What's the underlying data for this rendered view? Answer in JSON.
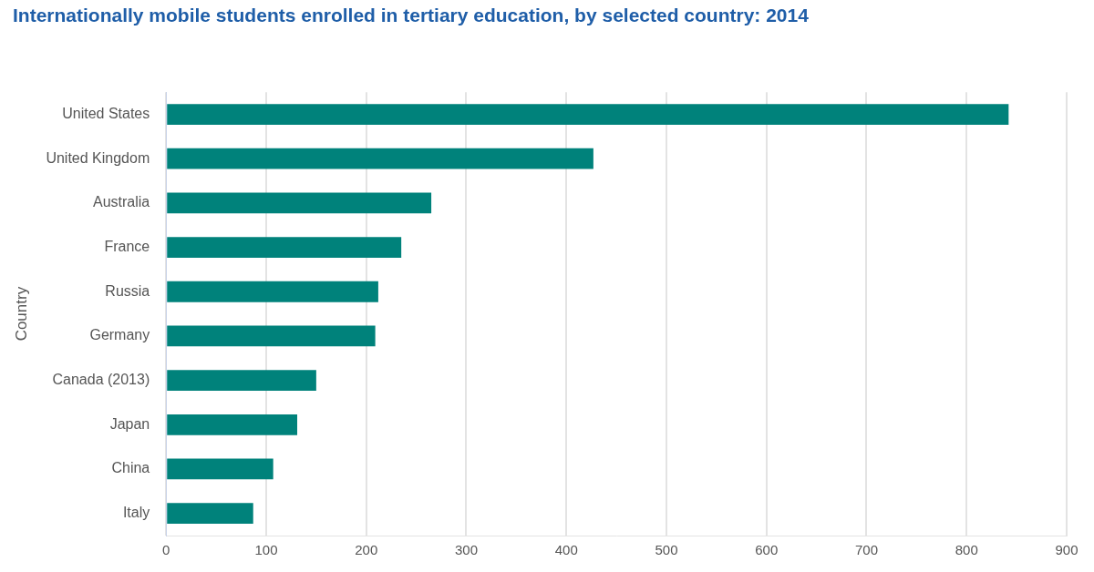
{
  "chart_data": {
    "type": "bar",
    "orientation": "horizontal",
    "title": "Internationally mobile students enrolled in tertiary education, by selected country: 2014",
    "y_label": "Country",
    "categories": [
      "United States",
      "United Kingdom",
      "Australia",
      "France",
      "Russia",
      "Germany",
      "Canada (2013)",
      "Japan",
      "China",
      "Italy"
    ],
    "values": [
      842,
      427,
      265,
      235,
      212,
      209,
      150,
      131,
      107,
      87
    ],
    "color": "#00827b",
    "xlim": [
      0,
      900
    ],
    "xticks": [
      0,
      100,
      200,
      300,
      400,
      500,
      600,
      700,
      800,
      900
    ],
    "grid": true
  }
}
